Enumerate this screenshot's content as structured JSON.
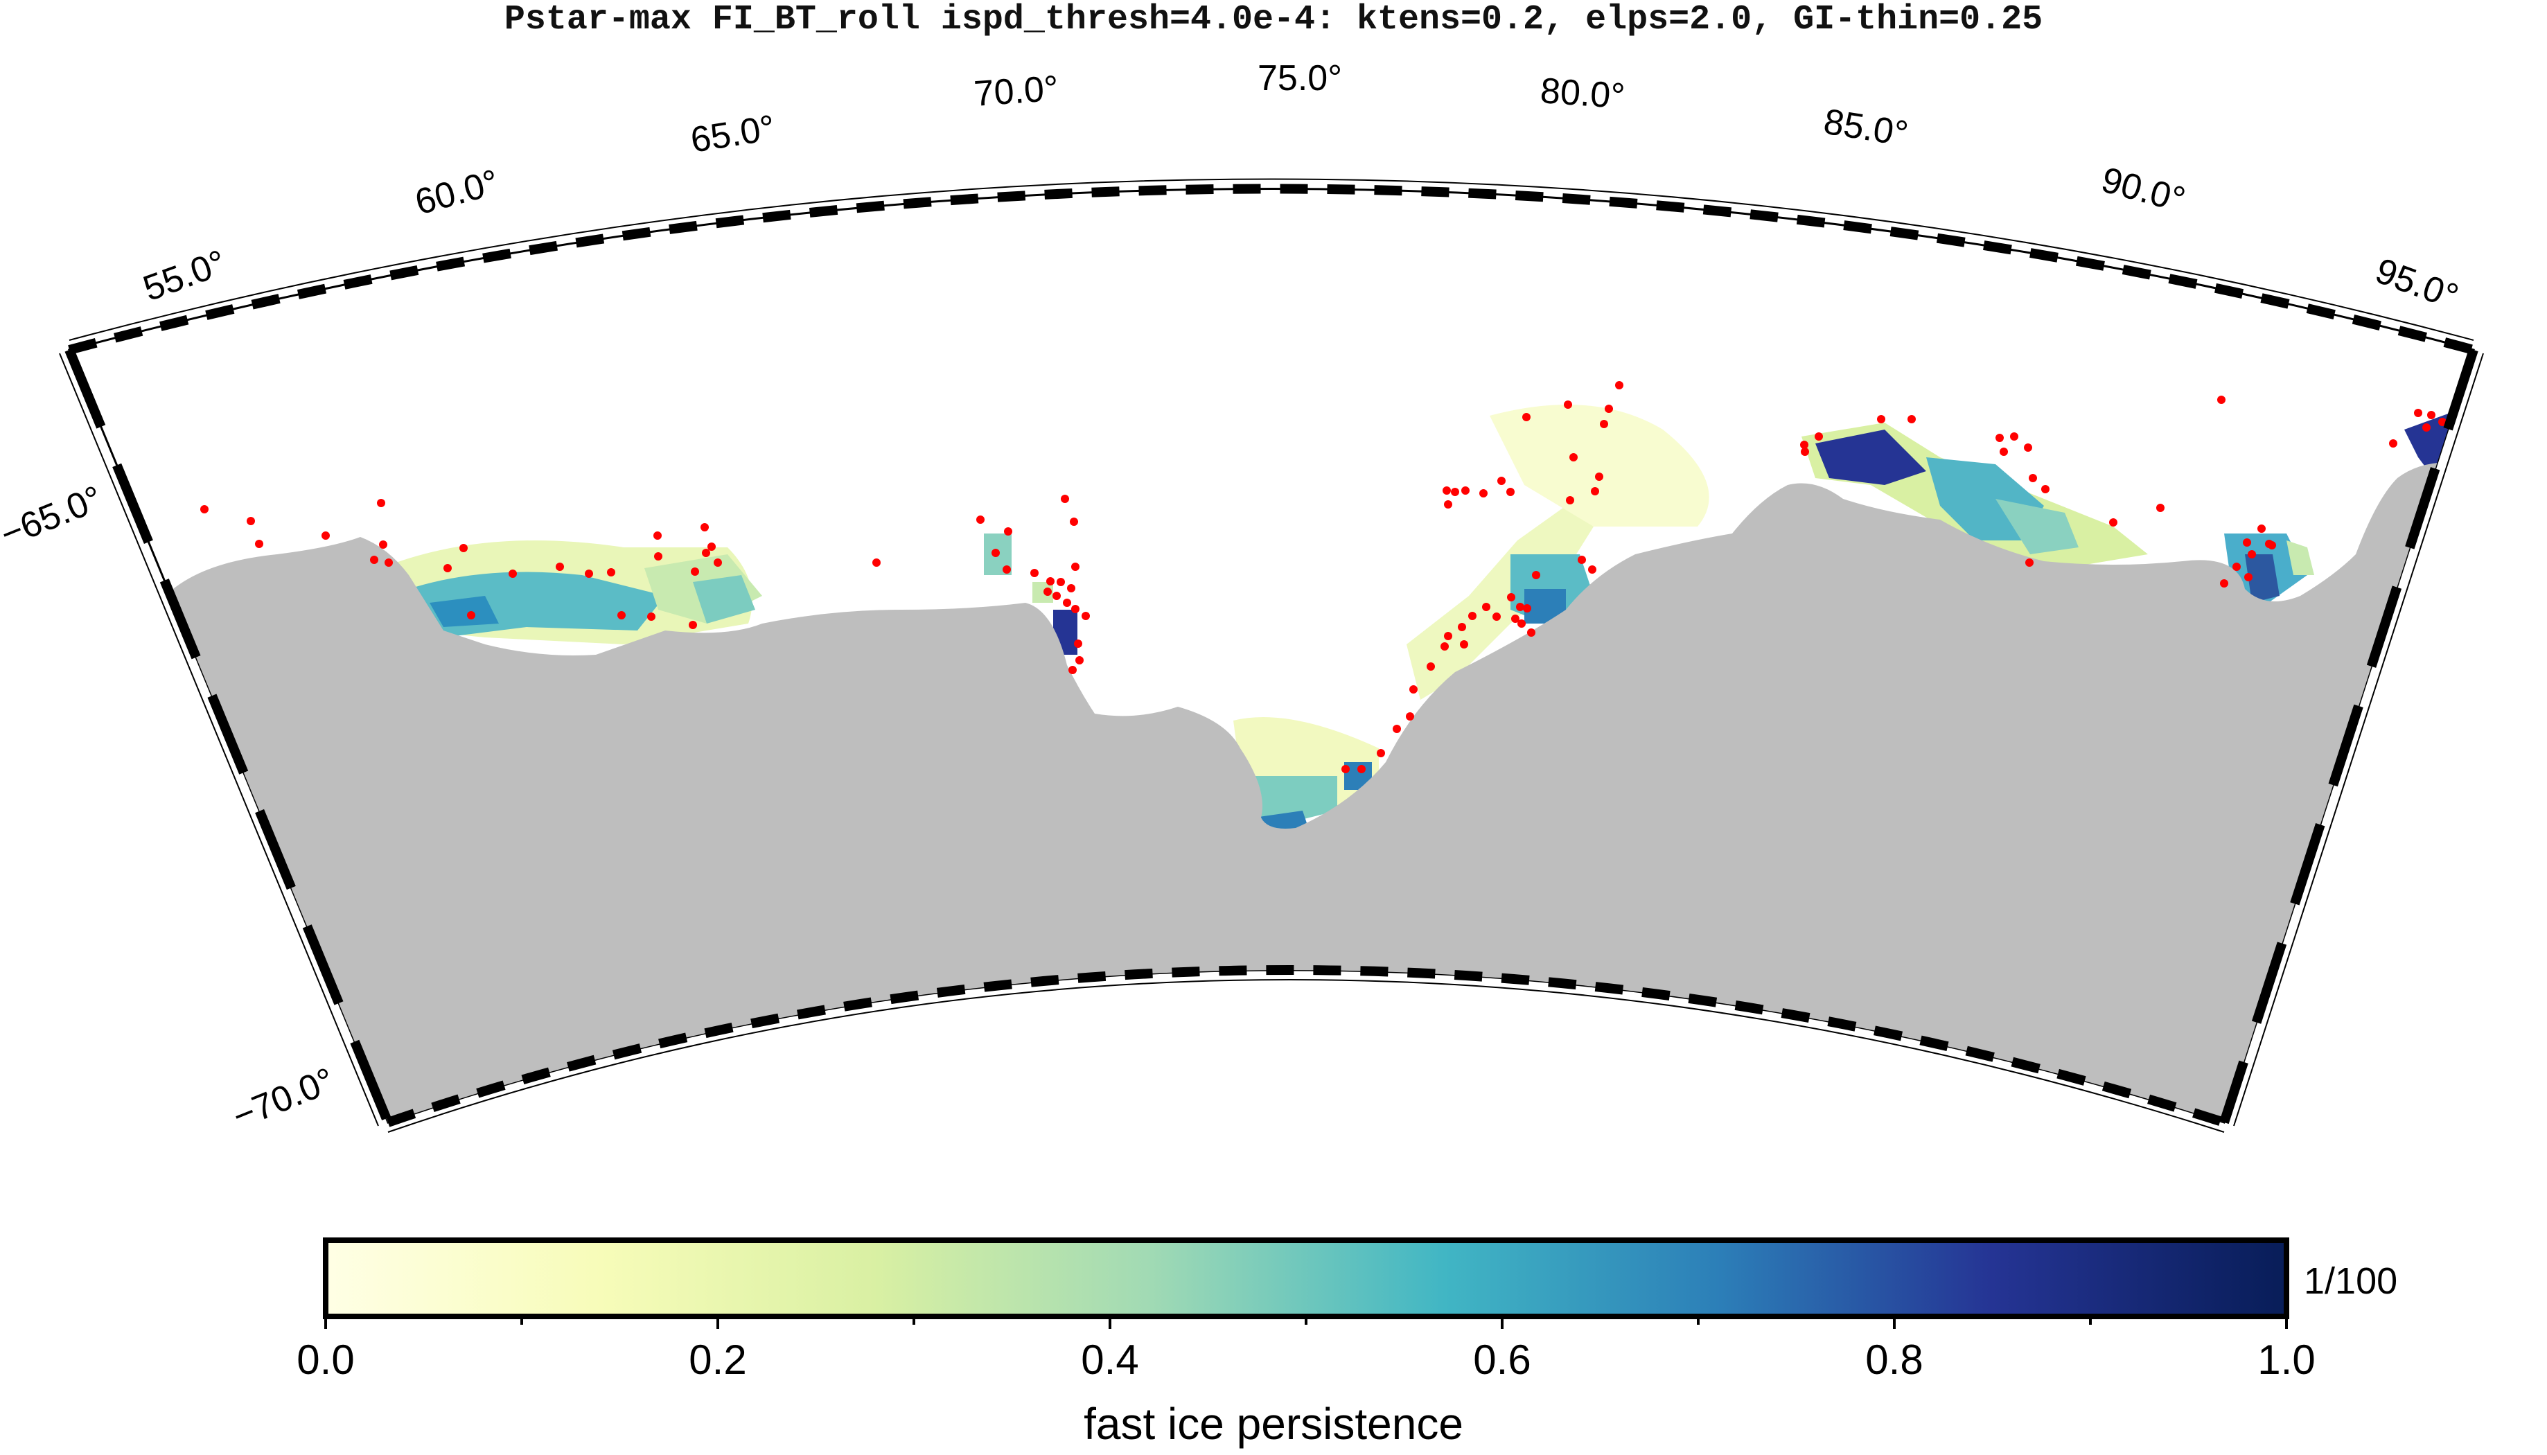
{
  "title": "Pstar-max FI_BT_roll ispd_thresh=4.0e-4: ktens=0.2, elps=2.0, GI-thin=0.25",
  "map": {
    "lon_labels": [
      "55.0°",
      "60.0°",
      "65.0°",
      "70.0°",
      "75.0°",
      "80.0°",
      "85.0°",
      "90.0°",
      "95.0°"
    ],
    "lat_labels": [
      "−65.0°",
      "−70.0°"
    ],
    "colors": {
      "land": "#bebebe",
      "ocean": "#ffffff",
      "grounded_iceberg_points": "#ff0000",
      "frame": "#000000"
    },
    "layers": [
      {
        "name": "fast ice persistence",
        "kind": "raster"
      },
      {
        "name": "land",
        "kind": "polygon"
      },
      {
        "name": "grounded icebergs",
        "kind": "points"
      }
    ]
  },
  "colorbar": {
    "label": "fast ice persistence",
    "unit": "1/100",
    "ticks": [
      "0.0",
      "0.2",
      "0.4",
      "0.6",
      "0.8",
      "1.0"
    ],
    "range": [
      0.0,
      1.0
    ],
    "colors": [
      "#ffffe5",
      "#f7fcb9",
      "#d9f0a3",
      "#a1dab4",
      "#41b6c4",
      "#2c7fb8",
      "#253494",
      "#081d58"
    ]
  }
}
